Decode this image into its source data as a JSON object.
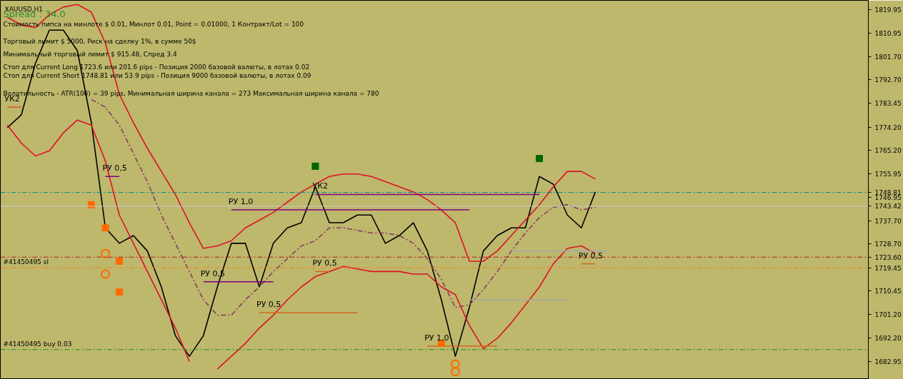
{
  "chart_data": {
    "type": "line",
    "title": "XAUUSD,H1",
    "annotations": [
      "Spread : 34.0",
      "Стоимость пипса на минлоте  $ 0.01,   Минлот 0.01,  Point = 0.01000,  1 Контракт/Lot = 100",
      "Торговый лимит $ 5000, Риск на сделку 1%,  в сумме 50$",
      "Минимальный торговый лимит $ 915.48,   Спред  3.4",
      "Стоп для Current Long 1723.6  или  201.6 pips -  Позиция 2000 базовой валюты,  в лотах 0.02",
      "Стоп для Current Short 1748.81  или  53.9 pips -  Позиция 9000 базовой валюты,  в лотах 0.09",
      "Волатильность - ATR(100) = 39 pips,  Минимальная ширина канала = 273    Максимальная ширина канала = 780"
    ],
    "categories": [
      null,
      null,
      null,
      null,
      null,
      null,
      null,
      null,
      null,
      null,
      null,
      null,
      null,
      null,
      null,
      null,
      null,
      null,
      null,
      null,
      null,
      null,
      null,
      null,
      null,
      null,
      null,
      null,
      null,
      null,
      null,
      null,
      null,
      null,
      null,
      null,
      null,
      null,
      null,
      null,
      null,
      null,
      null,
      null,
      null,
      null,
      null,
      null,
      null,
      null,
      null,
      null,
      null,
      null,
      null,
      null,
      null,
      null,
      null,
      null,
      null,
      null
    ],
    "ylim": [
      1676,
      1823.6
    ],
    "yticks": [
      {
        "value": 1819.95,
        "label": "1819.95"
      },
      {
        "value": 1810.95,
        "label": "1810.95"
      },
      {
        "value": 1801.7,
        "label": "1801.70"
      },
      {
        "value": 1792.7,
        "label": "1792.70"
      },
      {
        "value": 1783.45,
        "label": "1783.45"
      },
      {
        "value": 1774.2,
        "label": "1774.20"
      },
      {
        "value": 1765.2,
        "label": "1765.20"
      },
      {
        "value": 1755.95,
        "label": "1755.95"
      },
      {
        "value": 1748.81,
        "label": "1748.81"
      },
      {
        "value": 1746.95,
        "label": "1746.95"
      },
      {
        "value": 1743.42,
        "label": "1743.42"
      },
      {
        "value": 1737.7,
        "label": "1737.70"
      },
      {
        "value": 1728.7,
        "label": "1728.70"
      },
      {
        "value": 1723.6,
        "label": "1723.60"
      },
      {
        "value": 1719.45,
        "label": "1719.45"
      },
      {
        "value": 1710.45,
        "label": "1710.45"
      },
      {
        "value": 1701.2,
        "label": "1701.20"
      },
      {
        "value": 1692.2,
        "label": "1692.20"
      },
      {
        "value": 1682.95,
        "label": "1682.95"
      }
    ],
    "tick_labels": "y",
    "ref_lines": [
      {
        "axis": "y",
        "value": 1748.81,
        "color": "#008b8b",
        "line_style": "dashed"
      },
      {
        "axis": "y",
        "value": 1743.42,
        "color": "#c8c8c8",
        "line_style": "solid"
      },
      {
        "axis": "y",
        "value": 1723.6,
        "color": "#b22222",
        "line_style": "dashed"
      },
      {
        "axis": "y",
        "value": 1719.5,
        "color": "#ff7f27",
        "line_style": "dashed",
        "label": "#41450495 sl"
      },
      {
        "axis": "y",
        "value": 1687.6,
        "color": "#228b22",
        "line_style": "dashed",
        "label": "#41450495 buy 0.03"
      }
    ],
    "series": [
      {
        "color": "#000000",
        "values": [
          1774,
          1779,
          1799,
          1812,
          1812,
          1804,
          1776,
          1735,
          1729,
          1732,
          1726,
          1712,
          1693,
          1685,
          1693,
          1712,
          1729,
          1729,
          1712,
          1729,
          1735,
          1737,
          1751,
          1737,
          1737,
          1740,
          1740,
          1729,
          1732,
          1737,
          1726,
          1707,
          1685,
          1704,
          1726,
          1732,
          1735,
          1735,
          1755,
          1752,
          1740,
          1735,
          1749,
          null,
          null,
          null,
          null,
          null,
          null,
          null,
          null,
          null,
          null,
          null,
          null,
          null,
          null,
          null,
          null,
          null,
          null,
          null
        ]
      },
      {
        "color": "#e0102a",
        "values": [
          1817,
          1814,
          1813,
          1818,
          1821,
          1822,
          1819,
          1807,
          1787,
          1776,
          1766,
          1757,
          1748,
          1737,
          1727,
          1728,
          1730,
          1735,
          1738,
          1741,
          1745,
          1749,
          1752,
          1755,
          1756,
          1756,
          1755,
          1753,
          1751,
          1749,
          1746,
          1742,
          1737,
          1722,
          1722,
          1726,
          1732,
          1738,
          1744,
          1751,
          1757,
          1757,
          1754,
          null,
          null,
          null,
          null,
          null,
          null,
          null,
          null,
          null,
          null,
          null,
          null,
          null,
          null,
          null,
          null,
          null,
          null,
          null
        ]
      },
      {
        "color": "#e0102a",
        "values": [
          1775,
          1768,
          1763,
          1765,
          1772,
          1777,
          1775,
          1761,
          1740,
          1729,
          1718,
          1707,
          1696,
          1683,
          null,
          1680,
          1685,
          1690,
          1696,
          1701,
          1707,
          1712,
          1716,
          1718,
          1720,
          1719,
          1718,
          1718,
          1718,
          1717,
          1717,
          1712,
          1709,
          1697,
          1688,
          1692,
          1698,
          1705,
          1712,
          1721,
          1727,
          1728,
          1725,
          null,
          null,
          null,
          null,
          null,
          null,
          null,
          null,
          null,
          null,
          null,
          null,
          null,
          null,
          null,
          null,
          null,
          null,
          null
        ]
      },
      {
        "color": "#8b3a62",
        "line_style": "dashed",
        "values": [
          null,
          null,
          null,
          null,
          null,
          null,
          1785,
          1782,
          1775,
          1764,
          1753,
          1740,
          1729,
          1718,
          1707,
          1701,
          1701,
          1707,
          1712,
          1718,
          1723,
          1728,
          1730,
          1735,
          1735,
          1734,
          1733,
          1733,
          1732,
          1729,
          1723,
          1715,
          1704,
          1705,
          1711,
          1718,
          1726,
          1733,
          1739,
          1743,
          1744,
          1742,
          1743,
          null,
          null,
          null,
          null,
          null,
          null,
          null,
          null,
          null,
          null,
          null,
          null,
          null,
          null,
          null,
          null,
          null,
          null,
          null
        ]
      },
      {
        "name": "РУ 0,5",
        "color": "#800080",
        "values": [
          null,
          null,
          null,
          null,
          null,
          null,
          null,
          1755,
          1755,
          null,
          null,
          null,
          null,
          null,
          null,
          null,
          null,
          null,
          null,
          null,
          null,
          null,
          null,
          null,
          null,
          null,
          null,
          null,
          null,
          null,
          null,
          null,
          null,
          null,
          null,
          null,
          null,
          null,
          null,
          null,
          null,
          null,
          null,
          null,
          null,
          null,
          null,
          null,
          null,
          null,
          null,
          null,
          null,
          null,
          null,
          null,
          null,
          null,
          null,
          null,
          null,
          null
        ]
      },
      {
        "name": "РУ 1,0",
        "color": "#800080",
        "values": [
          null,
          null,
          null,
          null,
          null,
          null,
          null,
          null,
          null,
          null,
          null,
          null,
          null,
          null,
          null,
          null,
          1742,
          1742,
          1742,
          1742,
          1742,
          1742,
          1742,
          1742,
          1742,
          1742,
          1742,
          1742,
          1742,
          1742,
          1742,
          1742,
          1742,
          1742,
          null,
          null,
          null,
          null,
          null,
          null,
          null,
          null,
          null,
          null,
          null,
          null,
          null,
          null,
          null,
          null,
          null,
          null,
          null,
          null,
          null,
          null,
          null,
          null,
          null,
          null,
          null,
          null
        ]
      },
      {
        "name": "УК2",
        "color": "#800080",
        "values": [
          null,
          null,
          null,
          null,
          null,
          null,
          null,
          null,
          null,
          null,
          null,
          null,
          null,
          null,
          null,
          null,
          null,
          null,
          null,
          null,
          null,
          null,
          1748,
          1748,
          1748,
          1748,
          1748,
          1748,
          1748,
          1748,
          1748,
          1748,
          1748,
          1748,
          1748,
          1748,
          1748,
          1748,
          1748,
          null,
          null,
          null,
          null,
          null,
          null,
          null,
          null,
          null,
          null,
          null,
          null,
          null,
          null,
          null,
          null,
          null,
          null,
          null,
          null,
          null,
          null,
          null
        ]
      },
      {
        "name": "РУ 0,5",
        "color": "#800080",
        "values": [
          null,
          null,
          null,
          null,
          null,
          null,
          null,
          null,
          null,
          null,
          null,
          null,
          null,
          null,
          1714,
          1714,
          1714,
          1714,
          1714,
          1714,
          null,
          null,
          null,
          null,
          null,
          null,
          null,
          null,
          null,
          null,
          null,
          null,
          null,
          null,
          null,
          null,
          null,
          null,
          null,
          null,
          null,
          null,
          null,
          null,
          null,
          null,
          null,
          null,
          null,
          null,
          null,
          null,
          null,
          null,
          null,
          null,
          null,
          null,
          null,
          null,
          null,
          null
        ]
      },
      {
        "name": "РУ 0,5",
        "color": "#d2691e",
        "values": [
          null,
          null,
          null,
          null,
          null,
          null,
          null,
          null,
          null,
          null,
          null,
          null,
          null,
          null,
          null,
          null,
          null,
          null,
          1702,
          1702,
          1702,
          1702,
          1702,
          1702,
          1702,
          1702,
          null,
          null,
          null,
          null,
          null,
          null,
          null,
          null,
          null,
          null,
          null,
          null,
          null,
          null,
          null,
          null,
          null,
          null,
          null,
          null,
          null,
          null,
          null,
          null,
          null,
          null,
          null,
          null,
          null,
          null,
          null,
          null,
          null,
          null,
          null,
          null
        ]
      },
      {
        "name": "РУ 0,5",
        "color": "#d2691e",
        "values": [
          null,
          null,
          null,
          null,
          null,
          null,
          null,
          null,
          null,
          null,
          null,
          null,
          null,
          null,
          null,
          null,
          null,
          null,
          null,
          null,
          null,
          null,
          1718,
          1718,
          null,
          null,
          null,
          null,
          null,
          null,
          null,
          null,
          null,
          null,
          null,
          null,
          null,
          null,
          null,
          null,
          null,
          null,
          null,
          null,
          null,
          null,
          null,
          null,
          null,
          null,
          null,
          null,
          null,
          null,
          null,
          null,
          null,
          null,
          null,
          null,
          null,
          null
        ]
      },
      {
        "name": "РУ 1,0",
        "color": "#d2691e",
        "values": [
          null,
          null,
          null,
          null,
          null,
          null,
          null,
          null,
          null,
          null,
          null,
          null,
          null,
          null,
          null,
          null,
          null,
          null,
          null,
          null,
          null,
          null,
          null,
          null,
          null,
          null,
          null,
          null,
          null,
          null,
          1689,
          1689,
          1689,
          1689,
          1689,
          1689,
          null,
          null,
          null,
          null,
          null,
          null,
          null,
          null,
          null,
          null,
          null,
          null,
          null,
          null,
          null,
          null,
          null,
          null,
          null,
          null,
          null,
          null,
          null,
          null,
          null,
          null
        ]
      },
      {
        "color": "#a9a9a9",
        "values": [
          null,
          null,
          null,
          null,
          null,
          null,
          null,
          null,
          null,
          null,
          null,
          null,
          null,
          null,
          null,
          null,
          null,
          null,
          null,
          null,
          null,
          null,
          null,
          null,
          null,
          null,
          null,
          null,
          null,
          null,
          null,
          null,
          null,
          1707,
          1707,
          1707,
          1707,
          1707,
          1707,
          1707,
          1707,
          null,
          null,
          null,
          null,
          null,
          null,
          null,
          null,
          null,
          null,
          null,
          null,
          null,
          null,
          null,
          null,
          null,
          null,
          null,
          null,
          null
        ]
      },
      {
        "color": "#a9a9a9",
        "values": [
          null,
          null,
          null,
          null,
          null,
          null,
          null,
          null,
          null,
          null,
          null,
          null,
          null,
          null,
          null,
          null,
          null,
          null,
          null,
          null,
          null,
          null,
          null,
          null,
          null,
          null,
          null,
          null,
          null,
          null,
          null,
          null,
          null,
          null,
          null,
          null,
          1726,
          1726,
          1726,
          1726,
          1726,
          1726,
          1726,
          1726,
          null,
          null,
          null,
          null,
          null,
          null,
          null,
          null,
          null,
          null,
          null,
          null,
          null,
          null,
          null,
          null,
          null,
          null
        ]
      },
      {
        "name": "РУ 0,5",
        "color": "#d2691e",
        "values": [
          null,
          null,
          null,
          null,
          null,
          null,
          null,
          null,
          null,
          null,
          null,
          null,
          null,
          null,
          null,
          null,
          null,
          null,
          null,
          null,
          null,
          null,
          null,
          null,
          null,
          null,
          null,
          null,
          null,
          null,
          null,
          null,
          null,
          null,
          null,
          null,
          null,
          null,
          null,
          null,
          null,
          1721,
          1721,
          null,
          null,
          null,
          null,
          null,
          null,
          null,
          null,
          null,
          null,
          null,
          null,
          null,
          null,
          null,
          null,
          null,
          null,
          null
        ]
      },
      {
        "name": "УК2",
        "color": "#d2691e",
        "values": [
          1782,
          1782,
          null,
          null,
          null,
          null,
          null,
          null,
          null,
          null,
          null,
          null,
          null,
          null,
          null,
          null,
          null,
          null,
          null,
          null,
          null,
          null,
          null,
          null,
          null,
          null,
          null,
          null,
          null,
          null,
          null,
          null,
          null,
          null,
          null,
          null,
          null,
          null,
          null,
          null,
          null,
          null,
          null,
          null,
          null,
          null,
          null,
          null,
          null,
          null,
          null,
          null,
          null,
          null,
          null,
          null,
          null,
          null,
          null,
          null,
          null,
          null
        ]
      },
      {
        "type": "scatter",
        "marker": "square",
        "color": "#006400",
        "values": [
          null,
          null,
          null,
          null,
          null,
          null,
          null,
          null,
          null,
          null,
          null,
          null,
          null,
          null,
          null,
          null,
          null,
          null,
          null,
          null,
          null,
          null,
          1759,
          null,
          null,
          null,
          null,
          null,
          null,
          null,
          null,
          null,
          null,
          null,
          null,
          null,
          null,
          null,
          1762,
          null,
          null,
          null,
          null,
          null,
          null,
          null,
          null,
          null,
          null,
          null,
          null,
          null,
          null,
          null,
          null,
          null,
          null,
          null,
          null,
          null,
          null,
          null
        ]
      },
      {
        "type": "scatter",
        "marker": "circle",
        "color": "#ff6a00",
        "values": [
          null,
          null,
          null,
          null,
          null,
          null,
          null,
          1725,
          null,
          null,
          null,
          null,
          null,
          null,
          null,
          null,
          null,
          null,
          null,
          null,
          null,
          null,
          null,
          null,
          null,
          null,
          null,
          null,
          null,
          null,
          null,
          null,
          1682,
          null,
          null,
          null,
          null,
          null,
          null,
          null,
          null,
          null,
          null,
          null,
          null,
          null,
          null,
          null,
          null,
          null,
          null,
          null,
          null,
          null,
          null,
          null,
          null,
          null,
          null,
          null,
          null,
          null
        ]
      },
      {
        "type": "scatter",
        "marker": "circle",
        "color": "#ff6a00",
        "values": [
          null,
          null,
          null,
          null,
          null,
          null,
          null,
          1717,
          null,
          null,
          null,
          null,
          null,
          null,
          null,
          null,
          null,
          null,
          null,
          null,
          null,
          null,
          null,
          null,
          null,
          null,
          null,
          null,
          null,
          null,
          null,
          null,
          1679,
          null,
          null,
          null,
          null,
          null,
          null,
          null,
          null,
          null,
          null,
          null,
          null,
          null,
          null,
          null,
          null,
          null,
          null,
          null,
          null,
          null,
          null,
          null,
          null,
          null,
          null,
          null,
          null,
          null
        ]
      },
      {
        "type": "scatter",
        "marker": "square",
        "color": "#ff6a00",
        "values": [
          null,
          null,
          null,
          null,
          null,
          null,
          1744,
          1735,
          1722,
          null,
          null,
          null,
          null,
          null,
          null,
          null,
          null,
          null,
          null,
          null,
          null,
          null,
          null,
          null,
          null,
          null,
          null,
          null,
          null,
          null,
          null,
          1690,
          null,
          null,
          null,
          null,
          null,
          null,
          null,
          null,
          null,
          null,
          null,
          null,
          null,
          null,
          null,
          null,
          null,
          null,
          null,
          null,
          null,
          null,
          null,
          null,
          null,
          null,
          null,
          null,
          null,
          null
        ]
      },
      {
        "type": "scatter",
        "marker": "square",
        "color": "#ff6a00",
        "values": [
          null,
          null,
          null,
          null,
          null,
          null,
          null,
          null,
          1710,
          null,
          null,
          null,
          null,
          null,
          null,
          null,
          null,
          null,
          null,
          null,
          null,
          null,
          null,
          null,
          null,
          null,
          null,
          null,
          null,
          null,
          null,
          null,
          null,
          null,
          null,
          null,
          null,
          null,
          null,
          null,
          null,
          null,
          null,
          null,
          null,
          null,
          null,
          null,
          null,
          null,
          null,
          null,
          null,
          null,
          null,
          null,
          null,
          null,
          null,
          null,
          null,
          null
        ]
      }
    ]
  }
}
